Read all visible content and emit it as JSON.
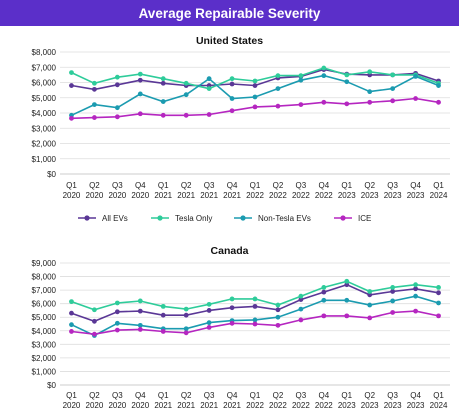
{
  "header": {
    "title": "Average Repairable Severity"
  },
  "colors": {
    "all_evs": "#5a3796",
    "tesla_only": "#2ecc9a",
    "non_tesla": "#1b9bb0",
    "ice": "#b526c0",
    "gridline": "#dddddd",
    "axis": "#bbbbbb"
  },
  "legend": {
    "items": [
      {
        "label": "All EVs",
        "color": "#5a3796"
      },
      {
        "label": "Tesla Only",
        "color": "#2ecc9a"
      },
      {
        "label": "Non-Tesla EVs",
        "color": "#1b9bb0"
      },
      {
        "label": "ICE",
        "color": "#b526c0"
      }
    ]
  },
  "chart_data": [
    {
      "type": "line",
      "title": "United States",
      "categories": [
        [
          "Q1",
          "2020"
        ],
        [
          "Q2",
          "2020"
        ],
        [
          "Q3",
          "2020"
        ],
        [
          "Q4",
          "2020"
        ],
        [
          "Q1",
          "2021"
        ],
        [
          "Q2",
          "2021"
        ],
        [
          "Q3",
          "2021"
        ],
        [
          "Q4",
          "2021"
        ],
        [
          "Q1",
          "2022"
        ],
        [
          "Q2",
          "2022"
        ],
        [
          "Q3",
          "2022"
        ],
        [
          "Q4",
          "2022"
        ],
        [
          "Q1",
          "2023"
        ],
        [
          "Q2",
          "2023"
        ],
        [
          "Q3",
          "2023"
        ],
        [
          "Q4",
          "2023"
        ],
        [
          "Q1",
          "2024"
        ]
      ],
      "ylim": [
        0,
        8000
      ],
      "yticks": [
        0,
        1000,
        2000,
        3000,
        4000,
        5000,
        6000,
        7000,
        8000
      ],
      "ytick_labels": [
        "$0",
        "$1,000",
        "$2,000",
        "$3,000",
        "$4,000",
        "$5,000",
        "$6,000",
        "$7,000",
        "$8,000"
      ],
      "grid": true,
      "series": [
        {
          "name": "All EVs",
          "values": [
            5800,
            5550,
            5850,
            6150,
            5950,
            5800,
            5800,
            5900,
            5800,
            6300,
            6400,
            6850,
            6550,
            6500,
            6500,
            6600,
            6100
          ]
        },
        {
          "name": "Tesla Only",
          "values": [
            6650,
            5950,
            6350,
            6550,
            6250,
            5950,
            5600,
            6250,
            6100,
            6450,
            6450,
            6950,
            6500,
            6700,
            6500,
            6500,
            5950
          ]
        },
        {
          "name": "Non-Tesla EVs",
          "values": [
            3850,
            4550,
            4350,
            5250,
            4750,
            5200,
            6250,
            4950,
            5050,
            5600,
            6150,
            6450,
            6050,
            5400,
            5600,
            6400,
            5800
          ]
        },
        {
          "name": "ICE",
          "values": [
            3650,
            3700,
            3750,
            3950,
            3850,
            3850,
            3900,
            4150,
            4400,
            4450,
            4550,
            4700,
            4600,
            4700,
            4800,
            4950,
            4700
          ]
        }
      ]
    },
    {
      "type": "line",
      "title": "Canada",
      "categories": [
        [
          "Q1",
          "2020"
        ],
        [
          "Q2",
          "2020"
        ],
        [
          "Q3",
          "2020"
        ],
        [
          "Q4",
          "2020"
        ],
        [
          "Q1",
          "2021"
        ],
        [
          "Q2",
          "2021"
        ],
        [
          "Q3",
          "2021"
        ],
        [
          "Q4",
          "2021"
        ],
        [
          "Q1",
          "2022"
        ],
        [
          "Q2",
          "2022"
        ],
        [
          "Q3",
          "2022"
        ],
        [
          "Q4",
          "2022"
        ],
        [
          "Q1",
          "2023"
        ],
        [
          "Q2",
          "2023"
        ],
        [
          "Q3",
          "2023"
        ],
        [
          "Q4",
          "2023"
        ],
        [
          "Q1",
          "2024"
        ]
      ],
      "ylim": [
        0,
        9000
      ],
      "yticks": [
        0,
        1000,
        2000,
        3000,
        4000,
        5000,
        6000,
        7000,
        8000,
        9000
      ],
      "ytick_labels": [
        "$0",
        "$1,000",
        "$2,000",
        "$3,000",
        "$4,000",
        "$5,000",
        "$6,000",
        "$7,000",
        "$8,000",
        "$9,000"
      ],
      "grid": true,
      "series": [
        {
          "name": "All EVs",
          "values": [
            5300,
            4700,
            5400,
            5450,
            5150,
            5150,
            5500,
            5700,
            5800,
            5550,
            6300,
            6850,
            7400,
            6650,
            6900,
            7100,
            6800
          ]
        },
        {
          "name": "Tesla Only",
          "values": [
            6150,
            5550,
            6050,
            6200,
            5800,
            5600,
            5950,
            6350,
            6350,
            5900,
            6550,
            7200,
            7650,
            6900,
            7200,
            7400,
            7200
          ]
        },
        {
          "name": "Non-Tesla EVs",
          "values": [
            4450,
            3650,
            4550,
            4400,
            4150,
            4150,
            4600,
            4750,
            4800,
            5000,
            5600,
            6250,
            6250,
            5900,
            6200,
            6550,
            6050
          ]
        },
        {
          "name": "ICE",
          "values": [
            3950,
            3750,
            4050,
            4100,
            3950,
            3850,
            4250,
            4550,
            4500,
            4400,
            4800,
            5100,
            5100,
            4950,
            5350,
            5450,
            5100
          ]
        }
      ]
    }
  ]
}
